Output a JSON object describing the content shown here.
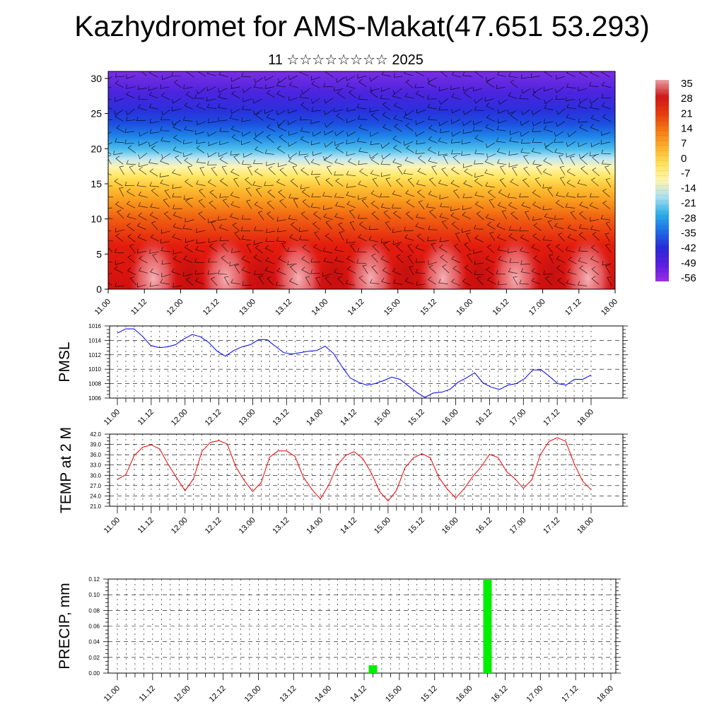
{
  "title": "Kazhydromet for AMS-Makat(47.651 53.293)",
  "subtitle": "11 ☆☆☆☆☆☆☆☆ 2025",
  "chart_data": [
    {
      "type": "heatmap",
      "title": "",
      "xlabel": "",
      "ylabel": "",
      "x_ticks": [
        "11.00",
        "11.12",
        "12.00",
        "12.12",
        "13.00",
        "13.12",
        "14.00",
        "14.12",
        "15.00",
        "15.12",
        "16.00",
        "16.12",
        "17.00",
        "17.12",
        "18.00"
      ],
      "y_ticks": [
        "0",
        "5",
        "10",
        "15",
        "20",
        "25",
        "30"
      ],
      "ylim": [
        0,
        31
      ],
      "colorbar": {
        "labels": [
          "35",
          "28",
          "21",
          "14",
          "7",
          "0",
          "-7",
          "-14",
          "-21",
          "-28",
          "-35",
          "-42",
          "-49",
          "-56"
        ],
        "range": [
          -60,
          38
        ],
        "colors": [
          "#e9a0a6",
          "#d01818",
          "#e63c10",
          "#f47a14",
          "#fdb02c",
          "#ffe35a",
          "#fff6b0",
          "#a8e0f2",
          "#2eaee8",
          "#1e6ee6",
          "#2a2ad8",
          "#5a1ee0",
          "#9b2ee6"
        ]
      },
      "wind_barbs": true
    },
    {
      "type": "line",
      "title": "",
      "ylabel": "PMSL",
      "x_ticks": [
        "11.00",
        "11.12",
        "12.00",
        "12.12",
        "13.00",
        "13.12",
        "14.00",
        "14.12",
        "15.00",
        "15.12",
        "16.00",
        "16.12",
        "17.00",
        "17.12",
        "18.00"
      ],
      "y_ticks": [
        "1016",
        "1014",
        "1012",
        "1010",
        "1008",
        "1006"
      ],
      "ylim": [
        1006,
        1016
      ],
      "grid": true,
      "color": "#0000ee",
      "series": [
        {
          "values": [
            1015.0,
            1015.6,
            1015.6,
            1014.6,
            1013.3,
            1013.0,
            1013.1,
            1013.4,
            1014.2,
            1014.8,
            1014.5,
            1013.7,
            1012.5,
            1011.8,
            1012.6,
            1013.1,
            1013.4,
            1014.1,
            1014.1,
            1013.2,
            1012.3,
            1012.1,
            1012.3,
            1012.5,
            1012.6,
            1013.2,
            1012.2,
            1010.4,
            1008.8,
            1008.2,
            1007.8,
            1008.0,
            1008.4,
            1008.9,
            1008.6,
            1007.7,
            1006.8,
            1006.1,
            1006.7,
            1006.8,
            1007.2,
            1008.2,
            1008.8,
            1009.5,
            1008.1,
            1007.5,
            1007.2,
            1007.8,
            1008.0,
            1008.7,
            1009.9,
            1009.9,
            1009.0,
            1008.0,
            1007.8,
            1008.6,
            1008.6,
            1009.2
          ]
        }
      ],
      "x_start_index": 0,
      "x_end_index": 57
    },
    {
      "type": "line",
      "title": "",
      "ylabel": "TEMP at 2 M",
      "x_ticks": [
        "11.00",
        "11.12",
        "12.00",
        "12.12",
        "13.00",
        "13.12",
        "14.00",
        "14.12",
        "15.00",
        "15.12",
        "16.00",
        "16.12",
        "17.00",
        "17.12",
        "18.00"
      ],
      "y_ticks": [
        "42.0",
        "39.0",
        "36.0",
        "33.0",
        "30.0",
        "27.0",
        "24.0",
        "21.0"
      ],
      "ylim": [
        21,
        42
      ],
      "grid": true,
      "color": "#ee0000",
      "series": [
        {
          "values": [
            28.8,
            30.2,
            35.8,
            38.2,
            38.9,
            37.7,
            33.2,
            29.3,
            25.5,
            29.0,
            37.0,
            39.6,
            40.1,
            39.1,
            32.5,
            28.5,
            25.3,
            27.9,
            35.3,
            37.1,
            37.1,
            35.5,
            29.4,
            25.9,
            23.1,
            27.2,
            33.0,
            35.8,
            36.9,
            34.9,
            30.8,
            25.3,
            22.5,
            25.6,
            32.2,
            35.1,
            36.3,
            35.1,
            29.4,
            26.0,
            23.4,
            26.1,
            29.6,
            32.5,
            36.1,
            35.2,
            31.1,
            29.0,
            26.2,
            28.7,
            36.0,
            39.8,
            41.0,
            39.9,
            33.4,
            28.3,
            25.8
          ]
        }
      ]
    },
    {
      "type": "bar",
      "title": "",
      "ylabel": "PRECIP, mm",
      "x_ticks": [
        "11.00",
        "11.12",
        "12.00",
        "12.12",
        "13.00",
        "13.12",
        "14.00",
        "14.12",
        "15.00",
        "15.12",
        "16.00",
        "16.12",
        "17.00",
        "17.12",
        "18.00"
      ],
      "y_ticks": [
        "0.12",
        "0.10",
        "0.08",
        "0.06",
        "0.04",
        "0.02",
        "0.00"
      ],
      "ylim": [
        0,
        0.12
      ],
      "grid": true,
      "color": "#00ee00",
      "bars": [
        {
          "x_step": 29,
          "value": 0.01
        },
        {
          "x_step": 42,
          "value": 0.12
        }
      ]
    }
  ]
}
